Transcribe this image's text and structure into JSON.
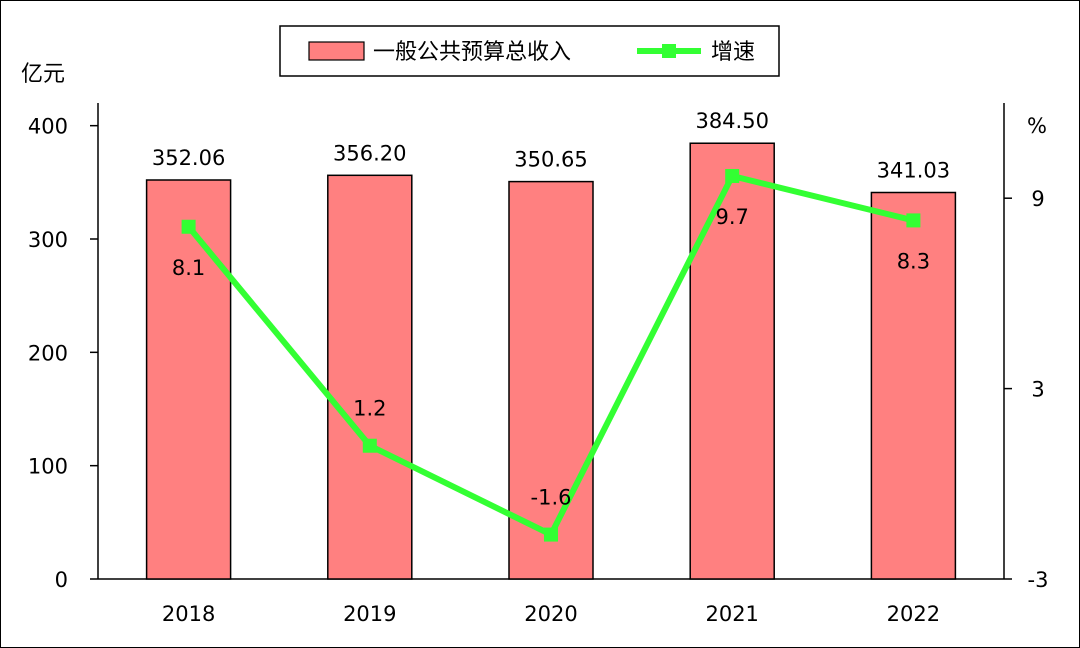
{
  "chart_data": {
    "type": "bar",
    "categories": [
      "2018",
      "2019",
      "2020",
      "2021",
      "2022"
    ],
    "series": [
      {
        "name": "一般公共预算总收入",
        "type": "bar",
        "axis": "left",
        "values": [
          352.06,
          356.2,
          350.65,
          384.5,
          341.03
        ],
        "labels": [
          "352.06",
          "356.20",
          "350.65",
          "384.50",
          "341.03"
        ]
      },
      {
        "name": "增速",
        "type": "line",
        "axis": "right",
        "values": [
          8.1,
          1.2,
          -1.6,
          9.7,
          8.3
        ],
        "labels": [
          "8.1",
          "1.2",
          "-1.6",
          "9.7",
          "8.3"
        ]
      }
    ],
    "ylabel_left": "亿元",
    "ylabel_right": "%",
    "ylim_left": [
      0,
      420
    ],
    "yticks_left": [
      0,
      100,
      200,
      300,
      400
    ],
    "ylim_right": [
      -3,
      12
    ],
    "yticks_right": [
      -3,
      3,
      9
    ],
    "legend_position": "top-center",
    "grid": false,
    "colors": {
      "bar_fill": "#FF8080",
      "bar_stroke": "#000000",
      "line": "#33FF33",
      "marker": "#33FF33"
    }
  }
}
